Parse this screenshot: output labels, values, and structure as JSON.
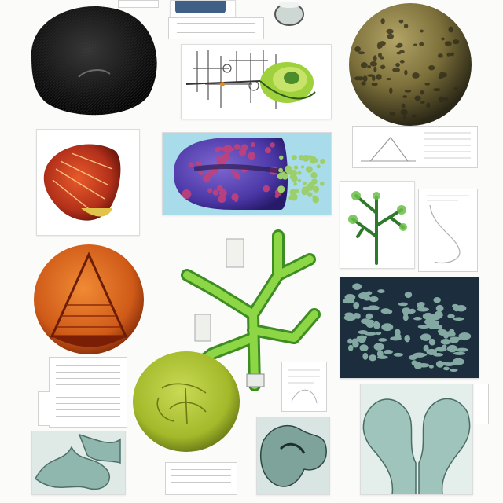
{
  "palette": {
    "background": "#fbfbf9",
    "black_sphere": "#161616",
    "olive_sphere": "#7c6f3a",
    "red_shell": "#c0391b",
    "purple_cell": "#4a37a6",
    "orange_sphere": "#d4601a",
    "lime_sphere": "#a7bf2c",
    "green_plant": "#7fc93b",
    "teal_coral": "#8fb7ae"
  },
  "specimens": [
    {
      "id": "black-sphere",
      "icon": "dark-textured-sphere-icon"
    },
    {
      "id": "olive-sphere",
      "icon": "spotted-olive-sphere-icon"
    },
    {
      "id": "red-shell",
      "icon": "red-segmented-shell-icon"
    },
    {
      "id": "purple-cell",
      "icon": "purple-cell-capsule-icon"
    },
    {
      "id": "green-plant",
      "icon": "green-branching-plant-icon"
    },
    {
      "id": "orange-sphere",
      "icon": "orange-pyramid-sphere-icon"
    },
    {
      "id": "lime-sphere",
      "icon": "lime-textured-sphere-icon"
    },
    {
      "id": "teal-coral",
      "icon": "teal-coral-mass-icon"
    }
  ]
}
